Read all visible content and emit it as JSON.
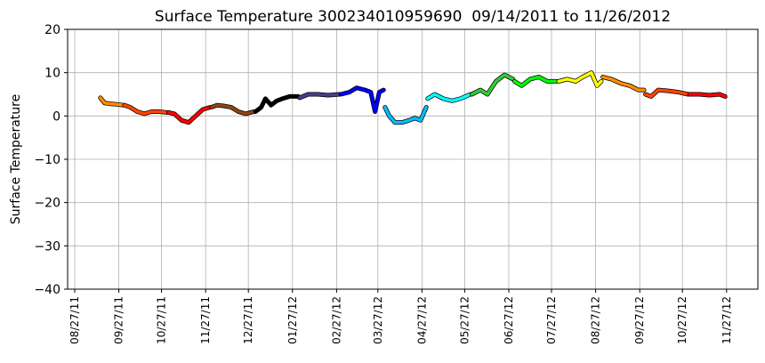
{
  "chart_data": {
    "type": "line",
    "title": "Surface Temperature 300234010959690  09/14/2011 to 11/26/2012",
    "y_label": "Surface Temperature",
    "xlim": [
      "2011-08-22",
      "2012-12-19"
    ],
    "xticks": [
      {
        "value": "2011-08-27",
        "label": "08/27/11"
      },
      {
        "value": "2011-09-27",
        "label": "09/27/11"
      },
      {
        "value": "2011-10-27",
        "label": "10/27/11"
      },
      {
        "value": "2011-11-27",
        "label": "11/27/11"
      },
      {
        "value": "2011-12-27",
        "label": "12/27/11"
      },
      {
        "value": "2012-01-27",
        "label": "01/27/12"
      },
      {
        "value": "2012-02-27",
        "label": "02/27/12"
      },
      {
        "value": "2012-03-27",
        "label": "03/27/12"
      },
      {
        "value": "2012-04-27",
        "label": "04/27/12"
      },
      {
        "value": "2012-05-27",
        "label": "05/27/12"
      },
      {
        "value": "2012-06-27",
        "label": "06/27/12"
      },
      {
        "value": "2012-07-27",
        "label": "07/27/12"
      },
      {
        "value": "2012-08-27",
        "label": "08/27/12"
      },
      {
        "value": "2012-09-27",
        "label": "09/27/12"
      },
      {
        "value": "2012-10-27",
        "label": "10/27/12"
      },
      {
        "value": "2012-11-27",
        "label": "11/27/12"
      }
    ],
    "ylim": [
      -40,
      20
    ],
    "yticks": [
      {
        "value": -40,
        "label": "−40"
      },
      {
        "value": -30,
        "label": "−30"
      },
      {
        "value": -20,
        "label": "−20"
      },
      {
        "value": -10,
        "label": "−10"
      },
      0,
      10,
      20
    ],
    "grid": true,
    "series": [
      {
        "color": "#ff8c00",
        "x": [
          "2011-09-14",
          "2011-09-17",
          "2011-09-21",
          "2011-09-25",
          "2011-09-30"
        ],
        "values": [
          4.2,
          3,
          2.8,
          2.7,
          2.5
        ]
      },
      {
        "color": "#ff4500",
        "x": [
          "2011-10-01",
          "2011-10-05",
          "2011-10-10",
          "2011-10-15",
          "2011-10-20",
          "2011-10-25",
          "2011-10-31"
        ],
        "values": [
          2.5,
          2,
          1,
          0.5,
          1,
          1,
          0.8
        ]
      },
      {
        "color": "#ff0000",
        "x": [
          "2011-11-01",
          "2011-11-05",
          "2011-11-10",
          "2011-11-15",
          "2011-11-20",
          "2011-11-25",
          "2011-11-30"
        ],
        "values": [
          0.8,
          0.5,
          -1,
          -1.5,
          0,
          1.5,
          2
        ]
      },
      {
        "color": "#8b4513",
        "x": [
          "2011-12-01",
          "2011-12-05",
          "2011-12-10",
          "2011-12-15",
          "2011-12-20",
          "2011-12-25",
          "2011-12-31"
        ],
        "values": [
          2,
          2.5,
          2.3,
          2,
          1,
          0.5,
          1
        ]
      },
      {
        "color": "#000000",
        "x": [
          "2012-01-01",
          "2012-01-05",
          "2012-01-08",
          "2012-01-12",
          "2012-01-16",
          "2012-01-20",
          "2012-01-25",
          "2012-01-31"
        ],
        "values": [
          1,
          2,
          4,
          2.5,
          3.5,
          4,
          4.5,
          4.5
        ]
      },
      {
        "color": "#483d8b",
        "x": [
          "2012-02-01",
          "2012-02-07",
          "2012-02-14",
          "2012-02-21",
          "2012-02-29"
        ],
        "values": [
          4.2,
          5,
          5,
          4.8,
          5
        ]
      },
      {
        "color": "#0000ff",
        "x": [
          "2012-03-01",
          "2012-03-07",
          "2012-03-12",
          "2012-03-18",
          "2012-03-22",
          "2012-03-25",
          "2012-03-28",
          "2012-03-31"
        ],
        "values": [
          5,
          5.5,
          6.5,
          6,
          5.5,
          1,
          5.5,
          6
        ]
      },
      {
        "color": "#00bfff",
        "x": [
          "2012-04-01",
          "2012-04-04",
          "2012-04-08",
          "2012-04-13",
          "2012-04-18",
          "2012-04-22",
          "2012-04-26",
          "2012-04-30"
        ],
        "values": [
          2,
          0,
          -1.5,
          -1.5,
          -1,
          -0.5,
          -1,
          2
        ]
      },
      {
        "color": "#00ffff",
        "x": [
          "2012-05-01",
          "2012-05-06",
          "2012-05-12",
          "2012-05-18",
          "2012-05-24",
          "2012-05-31"
        ],
        "values": [
          4,
          5,
          4,
          3.5,
          4,
          5
        ]
      },
      {
        "color": "#32cd32",
        "x": [
          "2012-06-01",
          "2012-06-07",
          "2012-06-12",
          "2012-06-18",
          "2012-06-24",
          "2012-06-30"
        ],
        "values": [
          5,
          6,
          5,
          8,
          9.5,
          8.5
        ]
      },
      {
        "color": "#00ff00",
        "x": [
          "2012-07-01",
          "2012-07-06",
          "2012-07-12",
          "2012-07-18",
          "2012-07-24",
          "2012-07-31"
        ],
        "values": [
          8,
          7,
          8.5,
          9,
          8,
          8
        ]
      },
      {
        "color": "#ffff00",
        "x": [
          "2012-08-01",
          "2012-08-07",
          "2012-08-13",
          "2012-08-18",
          "2012-08-24",
          "2012-08-28",
          "2012-08-31"
        ],
        "values": [
          8,
          8.5,
          8,
          9,
          10,
          7,
          8
        ]
      },
      {
        "color": "#ff8c00",
        "x": [
          "2012-09-01",
          "2012-09-07",
          "2012-09-14",
          "2012-09-20",
          "2012-09-26",
          "2012-09-30"
        ],
        "values": [
          9,
          8.5,
          7.5,
          7,
          6,
          6
        ]
      },
      {
        "color": "#ff4500",
        "x": [
          "2012-10-01",
          "2012-10-05",
          "2012-10-10",
          "2012-10-17",
          "2012-10-24",
          "2012-10-31"
        ],
        "values": [
          5,
          4.5,
          6,
          5.8,
          5.5,
          5
        ]
      },
      {
        "color": "#ff0000",
        "x": [
          "2012-11-01",
          "2012-11-08",
          "2012-11-15",
          "2012-11-22",
          "2012-11-26"
        ],
        "values": [
          5,
          5,
          4.8,
          5,
          4.5
        ]
      }
    ]
  }
}
